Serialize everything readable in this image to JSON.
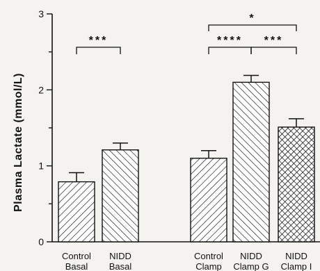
{
  "chart_data": {
    "type": "bar",
    "ylabel": "Plasma Lactate (mmol/L)",
    "xlabel": "",
    "ylim": [
      0,
      3
    ],
    "yticks": [
      0,
      1,
      2,
      3
    ],
    "grid": false,
    "categories": [
      {
        "line1": "Control",
        "line2": "Basal",
        "value": 0.79,
        "error": 0.12,
        "pattern": "hatch-back"
      },
      {
        "line1": "NIDD",
        "line2": "Basal",
        "value": 1.21,
        "error": 0.09,
        "pattern": "hatch-fwd"
      },
      {
        "line1": "Control",
        "line2": "Clamp",
        "value": 1.1,
        "error": 0.1,
        "pattern": "hatch-back"
      },
      {
        "line1": "NIDD",
        "line2": "Clamp G",
        "value": 2.1,
        "error": 0.09,
        "pattern": "hatch-fwd"
      },
      {
        "line1": "NIDD",
        "line2": "Clamp I",
        "value": 1.51,
        "error": 0.11,
        "pattern": "crosshatch"
      }
    ],
    "annotations": [
      {
        "label": "***",
        "from": 0,
        "to": 1,
        "level": 1
      },
      {
        "label": "****",
        "from": 2,
        "to": 3,
        "level": 1
      },
      {
        "label": "***",
        "from": 3,
        "to": 4,
        "level": 1
      },
      {
        "label": "*",
        "from": 2,
        "to": 4,
        "level": 2
      }
    ]
  }
}
